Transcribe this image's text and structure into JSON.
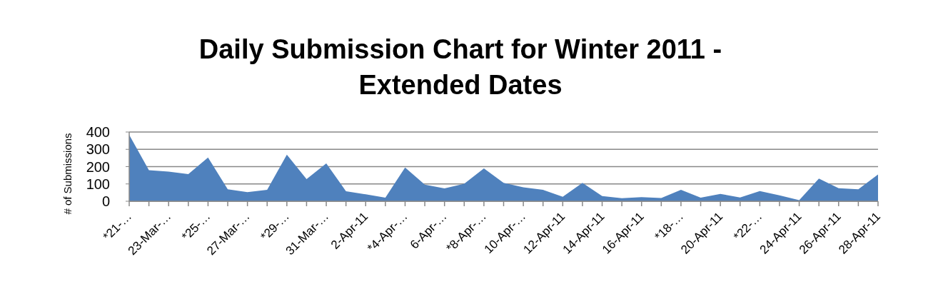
{
  "chart_data": {
    "type": "area",
    "title": "Daily Submission Chart for Winter 2011 -\nExtended Dates",
    "ylabel": "# of Submissions",
    "categories": [
      "*21-…",
      null,
      "23-Mar-…",
      null,
      "*25-…",
      null,
      "27-Mar-…",
      null,
      "*29-…",
      null,
      "31-Mar-…",
      null,
      "2-Apr-11",
      null,
      "*4-Apr-…",
      null,
      "6-Apr-…",
      null,
      "*8-Apr-…",
      null,
      "10-Apr-…",
      null,
      "12-Apr-11",
      null,
      "14-Apr-11",
      null,
      "16-Apr-11",
      null,
      "*18-…",
      null,
      "20-Apr-11",
      null,
      "*22-…",
      null,
      "24-Apr-11",
      null,
      "26-Apr-11",
      null,
      "28-Apr-11"
    ],
    "values": [
      384,
      179,
      171,
      157,
      253,
      69,
      53,
      66,
      269,
      128,
      219,
      58,
      40,
      21,
      195,
      96,
      74,
      101,
      190,
      106,
      80,
      66,
      26,
      106,
      30,
      18,
      24,
      19,
      66,
      21,
      42,
      22,
      59,
      34,
      6,
      131,
      75,
      69,
      155
    ],
    "color": "#4f81bd",
    "ylim": [
      0,
      400
    ],
    "yticks": [
      0,
      100,
      200,
      300,
      400
    ],
    "grid": "y"
  }
}
